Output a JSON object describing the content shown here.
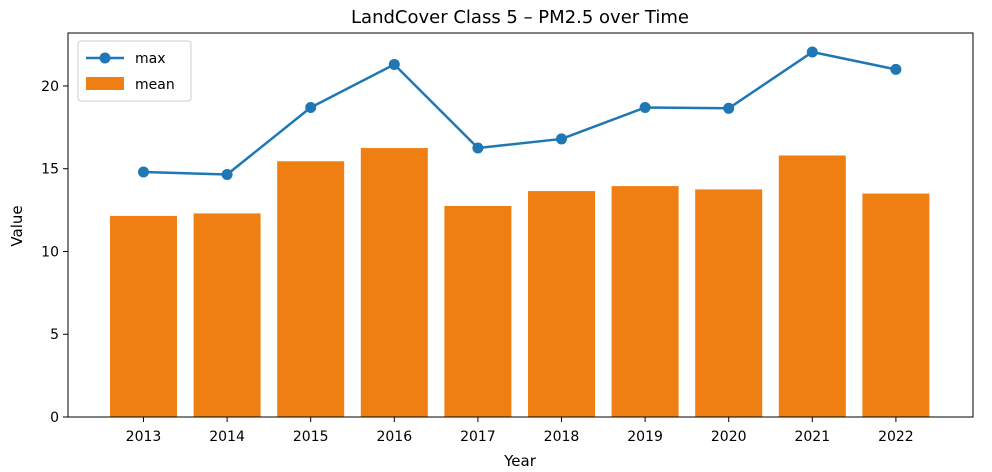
{
  "chart_data": {
    "type": "bar",
    "title": "LandCover Class 5 – PM2.5 over Time",
    "xlabel": "Year",
    "ylabel": "Value",
    "categories": [
      "2013",
      "2014",
      "2015",
      "2016",
      "2017",
      "2018",
      "2019",
      "2020",
      "2021",
      "2022"
    ],
    "ylim": [
      0,
      23.2
    ],
    "yticks": [
      0,
      5,
      10,
      15,
      20
    ],
    "grid": false,
    "legend": "top-left",
    "series": [
      {
        "name": "max",
        "type": "line",
        "marker": "circle",
        "color": "#1f77b4",
        "values": [
          14.8,
          14.65,
          18.7,
          21.3,
          16.25,
          16.8,
          18.7,
          18.65,
          22.05,
          21.0
        ]
      },
      {
        "name": "mean",
        "type": "bar",
        "color": "#ef7f13",
        "values": [
          12.15,
          12.3,
          15.45,
          16.25,
          12.75,
          13.65,
          13.95,
          13.75,
          15.8,
          13.5
        ]
      }
    ]
  }
}
